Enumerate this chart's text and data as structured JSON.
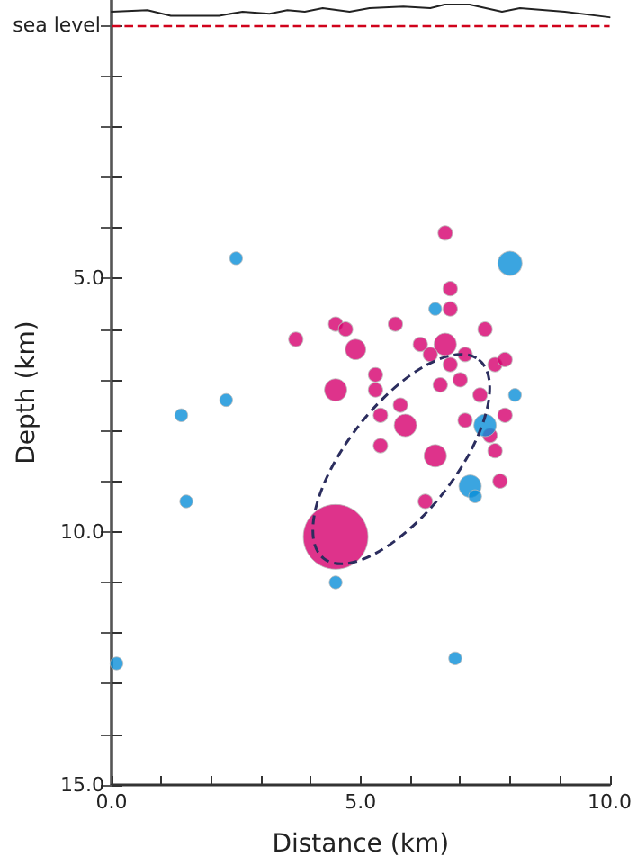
{
  "chart_data": {
    "type": "bubble",
    "xlabel": "Distance (km)",
    "ylabel": "Depth (km)",
    "xlim": [
      0,
      10
    ],
    "ylim": [
      15,
      -0.5
    ],
    "xticks": [
      {
        "value": 0,
        "label": "0.0"
      },
      {
        "value": 1,
        "label": null
      },
      {
        "value": 2,
        "label": null
      },
      {
        "value": 3,
        "label": null
      },
      {
        "value": 4,
        "label": null
      },
      {
        "value": 5,
        "label": "5.0"
      },
      {
        "value": 6,
        "label": null
      },
      {
        "value": 7,
        "label": null
      },
      {
        "value": 8,
        "label": null
      },
      {
        "value": 9,
        "label": null
      },
      {
        "value": 10,
        "label": "10.0"
      }
    ],
    "yticks": [
      {
        "value": 0,
        "label": null
      },
      {
        "value": 1,
        "label": null
      },
      {
        "value": 2,
        "label": null
      },
      {
        "value": 3,
        "label": null
      },
      {
        "value": 4,
        "label": null
      },
      {
        "value": 5,
        "label": "5.0"
      },
      {
        "value": 6,
        "label": null
      },
      {
        "value": 7,
        "label": null
      },
      {
        "value": 8,
        "label": null
      },
      {
        "value": 9,
        "label": null
      },
      {
        "value": 10,
        "label": "10.0"
      },
      {
        "value": 11,
        "label": null
      },
      {
        "value": 12,
        "label": null
      },
      {
        "value": 13,
        "label": null
      },
      {
        "value": 14,
        "label": null
      },
      {
        "value": 15,
        "label": "15.0"
      }
    ],
    "ref_lines": [
      {
        "axis": "y",
        "value": 0,
        "label": "sea level",
        "color": "#d0021b",
        "line_style": "dashed"
      }
    ],
    "series": [
      {
        "color": "#d6006e",
        "x": [
          6.7,
          6.8,
          6.8,
          4.5,
          4.7,
          5.7,
          7.5,
          3.7,
          6.2,
          6.7,
          6.4,
          6.8,
          7.1,
          7.7,
          7.9,
          4.9,
          5.3,
          5.3,
          4.5,
          6.6,
          7.0,
          7.4,
          5.8,
          5.4,
          7.9,
          7.1,
          5.9,
          5.4,
          7.6,
          7.7,
          6.5,
          7.8,
          6.3,
          4.5
        ],
        "values": [
          4.1,
          5.2,
          5.6,
          5.9,
          6.0,
          5.9,
          6.0,
          6.2,
          6.3,
          6.3,
          6.5,
          6.7,
          6.5,
          6.7,
          6.6,
          6.4,
          6.9,
          7.2,
          7.2,
          7.1,
          7.0,
          7.3,
          7.5,
          7.7,
          7.7,
          7.8,
          7.9,
          8.3,
          8.1,
          8.4,
          8.5,
          9.0,
          9.4,
          10.1
        ],
        "sizes": [
          0.05,
          0.05,
          0.05,
          0.05,
          0.05,
          0.05,
          0.05,
          0.05,
          0.05,
          0.12,
          0.05,
          0.05,
          0.05,
          0.05,
          0.05,
          0.1,
          0.05,
          0.05,
          0.12,
          0.05,
          0.05,
          0.05,
          0.05,
          0.05,
          0.05,
          0.05,
          0.12,
          0.05,
          0.05,
          0.05,
          0.12,
          0.05,
          0.05,
          1
        ]
      },
      {
        "color": "#0a8fd8",
        "x": [
          2.5,
          8.0,
          2.3,
          1.4,
          1.5,
          0.1,
          6.5,
          8.1,
          7.5,
          7.2,
          7.3,
          4.5,
          6.9
        ],
        "values": [
          4.6,
          4.7,
          7.4,
          7.7,
          9.4,
          12.6,
          5.6,
          7.3,
          7.9,
          9.1,
          9.3,
          11.0,
          12.5
        ],
        "sizes": [
          0.04,
          0.14,
          0.04,
          0.04,
          0.04,
          0.04,
          0.04,
          0.04,
          0.12,
          0.12,
          0.04,
          0.04,
          0.04
        ]
      },
      {
        "type": "line",
        "color": "#222222",
        "marker": "none",
        "line_style": "solid",
        "x": [
          0,
          0.72,
          1.19,
          2.16,
          2.63,
          3.17,
          3.53,
          3.88,
          4.24,
          4.78,
          5.18,
          5.86,
          6.4,
          6.69,
          7.19,
          7.84,
          8.2,
          9.1,
          10
        ],
        "values": [
          -0.27,
          -0.3,
          -0.19,
          -0.19,
          -0.27,
          -0.23,
          -0.3,
          -0.27,
          -0.34,
          -0.27,
          -0.34,
          -0.37,
          -0.34,
          -0.41,
          -0.41,
          -0.27,
          -0.34,
          -0.27,
          -0.16
        ]
      }
    ]
  }
}
